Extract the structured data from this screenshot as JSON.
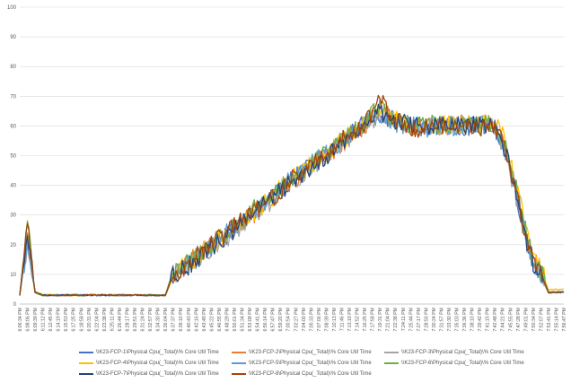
{
  "chart_data": {
    "type": "line",
    "title": "",
    "xlabel": "",
    "ylabel": "",
    "ylim": [
      0,
      100
    ],
    "yticks": [
      0,
      10,
      20,
      30,
      40,
      50,
      60,
      70,
      80,
      90,
      100
    ],
    "grid": "horizontal",
    "legend_position": "bottom",
    "x_categories": [
      "6:06:34 PM",
      "6:08:06 PM",
      "6:09:39 PM",
      "6:11:12 PM",
      "6:12:45 PM",
      "6:14:19 PM",
      "6:15:53 PM",
      "6:17:25 PM",
      "6:18:58 PM",
      "6:20:31 PM",
      "6:22:04 PM",
      "6:23:38 PM",
      "6:25:11 PM",
      "6:26:44 PM",
      "6:28:17 PM",
      "6:29:51 PM",
      "6:31:24 PM",
      "6:32:57 PM",
      "6:34:30 PM",
      "6:36:04 PM",
      "6:37:37 PM",
      "6:39:10 PM",
      "6:40:43 PM",
      "6:42:16 PM",
      "6:43:49 PM",
      "6:45:22 PM",
      "6:46:55 PM",
      "6:48:29 PM",
      "6:50:01 PM",
      "6:51:34 PM",
      "6:53:08 PM",
      "6:54:41 PM",
      "6:56:14 PM",
      "6:57:47 PM",
      "6:59:20 PM",
      "7:00:54 PM",
      "7:02:27 PM",
      "7:04:00 PM",
      "7:05:33 PM",
      "7:07:06 PM",
      "7:08:39 PM",
      "7:10:13 PM",
      "7:11:46 PM",
      "7:13:19 PM",
      "7:14:52 PM",
      "7:16:25 PM",
      "7:17:58 PM",
      "7:19:31 PM",
      "7:21:04 PM",
      "7:22:38 PM",
      "7:24:11 PM",
      "7:25:44 PM",
      "7:27:17 PM",
      "7:28:50 PM",
      "7:30:24 PM",
      "7:31:57 PM",
      "7:33:30 PM",
      "7:35:03 PM",
      "7:36:36 PM",
      "7:38:10 PM",
      "7:39:42 PM",
      "7:41:15 PM",
      "7:42:48 PM",
      "7:44:21 PM",
      "7:45:55 PM",
      "7:47:28 PM",
      "7:49:01 PM",
      "7:50:34 PM",
      "7:52:07 PM",
      "7:53:41 PM",
      "7:55:14 PM",
      "7:56:47 PM"
    ],
    "series": [
      {
        "name": "\\\\K23-FCP-1\\Physical Cpu(_Total)\\% Core Util Time",
        "color": "#4472C4",
        "values": [
          3,
          22,
          4,
          3,
          3,
          3,
          3,
          3,
          3,
          3,
          3,
          3,
          3,
          3,
          3,
          3,
          3,
          3,
          3,
          3,
          10,
          11,
          13,
          15,
          17,
          19,
          21,
          23,
          25,
          27,
          30,
          32,
          34,
          36,
          38,
          41,
          43,
          45,
          47,
          49,
          51,
          53,
          55,
          57,
          59,
          61,
          63,
          64,
          63,
          62,
          61,
          60,
          60,
          60,
          60,
          60,
          60,
          60,
          60,
          60,
          60,
          60,
          59,
          55,
          45,
          35,
          23,
          14,
          10,
          4,
          4,
          4
        ]
      },
      {
        "name": "\\\\K23-FCP-2\\Physical Cpu(_Total)\\% Core Util Time",
        "color": "#ED7D31",
        "values": [
          3,
          24,
          4,
          3,
          3,
          3,
          3,
          3,
          3,
          3,
          3,
          3,
          3,
          3,
          3,
          3,
          3,
          3,
          3,
          3,
          9,
          12,
          14,
          16,
          18,
          20,
          22,
          24,
          26,
          28,
          29,
          31,
          33,
          35,
          37,
          40,
          42,
          44,
          46,
          48,
          50,
          52,
          54,
          56,
          58,
          60,
          63,
          66,
          64,
          62,
          61,
          60,
          59,
          60,
          61,
          60,
          59,
          60,
          61,
          60,
          59,
          61,
          60,
          56,
          47,
          37,
          25,
          15,
          11,
          4,
          4,
          4
        ]
      },
      {
        "name": "\\\\K23-FCP-3\\Physical Cpu(_Total)\\% Core Util Time",
        "color": "#A5A5A5",
        "values": [
          3,
          20,
          4,
          3,
          3,
          3,
          3,
          3,
          3,
          3,
          3,
          3,
          3,
          3,
          3,
          3,
          3,
          3,
          3,
          3,
          10,
          11,
          13,
          14,
          16,
          19,
          21,
          22,
          24,
          26,
          29,
          31,
          33,
          35,
          38,
          40,
          42,
          44,
          46,
          48,
          50,
          52,
          54,
          56,
          58,
          60,
          62,
          63,
          62,
          61,
          60,
          59,
          60,
          60,
          60,
          59,
          60,
          60,
          60,
          60,
          60,
          60,
          59,
          54,
          44,
          34,
          22,
          13,
          9,
          4,
          4,
          4
        ]
      },
      {
        "name": "\\\\K23-FCP-4\\Physical Cpu(_Total)\\% Core Util Time",
        "color": "#FFC000",
        "values": [
          3,
          23,
          4,
          3,
          3,
          3,
          3,
          3,
          3,
          3,
          3,
          3,
          3,
          3,
          3,
          3,
          3,
          3,
          3,
          3,
          9,
          12,
          13,
          16,
          18,
          20,
          22,
          23,
          25,
          27,
          30,
          32,
          34,
          36,
          39,
          41,
          43,
          45,
          47,
          49,
          51,
          53,
          55,
          57,
          59,
          61,
          63,
          65,
          63,
          62,
          61,
          61,
          60,
          61,
          60,
          60,
          61,
          60,
          60,
          61,
          60,
          62,
          61,
          57,
          48,
          38,
          26,
          16,
          12,
          5,
          5,
          5
        ]
      },
      {
        "name": "\\\\K23-FCP-5\\Physical Cpu(_Total)\\% Core Util Time",
        "color": "#5B9BD5",
        "values": [
          3,
          21,
          4,
          3,
          3,
          3,
          3,
          3,
          3,
          3,
          3,
          3,
          3,
          3,
          3,
          3,
          3,
          3,
          3,
          3,
          10,
          11,
          14,
          15,
          17,
          19,
          21,
          24,
          26,
          28,
          30,
          32,
          34,
          36,
          38,
          41,
          43,
          45,
          47,
          49,
          51,
          53,
          55,
          57,
          59,
          61,
          62,
          64,
          63,
          61,
          60,
          60,
          60,
          59,
          60,
          61,
          60,
          59,
          60,
          60,
          61,
          60,
          59,
          55,
          46,
          36,
          24,
          14,
          10,
          4,
          4,
          4
        ]
      },
      {
        "name": "\\\\K23-FCP-6\\Physical Cpu(_Total)\\% Core Util Time",
        "color": "#70AD47",
        "values": [
          3,
          28,
          4,
          3,
          3,
          3,
          3,
          3,
          3,
          3,
          3,
          3,
          3,
          3,
          3,
          3,
          3,
          3,
          3,
          3,
          11,
          12,
          14,
          16,
          18,
          20,
          22,
          24,
          26,
          28,
          31,
          33,
          35,
          37,
          39,
          41,
          43,
          45,
          47,
          49,
          51,
          53,
          55,
          57,
          59,
          61,
          64,
          67,
          64,
          62,
          61,
          60,
          60,
          60,
          61,
          60,
          60,
          61,
          60,
          60,
          60,
          61,
          60,
          56,
          47,
          37,
          25,
          15,
          11,
          4,
          4,
          4
        ]
      },
      {
        "name": "\\\\K23-FCP-7\\Physical Cpu(_Total)\\% Core Util Time",
        "color": "#264478",
        "values": [
          3,
          23,
          4,
          3,
          3,
          3,
          3,
          3,
          3,
          3,
          3,
          3,
          3,
          3,
          3,
          3,
          3,
          3,
          3,
          3,
          10,
          11,
          13,
          15,
          17,
          19,
          21,
          23,
          25,
          27,
          30,
          32,
          34,
          36,
          38,
          40,
          42,
          44,
          46,
          48,
          50,
          52,
          54,
          56,
          58,
          60,
          63,
          65,
          63,
          62,
          61,
          60,
          60,
          60,
          60,
          60,
          60,
          60,
          60,
          60,
          60,
          60,
          59,
          55,
          45,
          35,
          23,
          14,
          10,
          4,
          4,
          4
        ]
      },
      {
        "name": "\\\\K23-FCP-8\\Physical Cpu(_Total)\\% Core Util Time",
        "color": "#9E480E",
        "values": [
          3,
          27,
          4,
          3,
          3,
          3,
          3,
          3,
          3,
          3,
          3,
          3,
          3,
          3,
          3,
          3,
          3,
          3,
          3,
          3,
          10,
          12,
          14,
          16,
          18,
          20,
          22,
          24,
          26,
          28,
          30,
          32,
          34,
          36,
          38,
          41,
          43,
          45,
          47,
          49,
          51,
          53,
          55,
          57,
          59,
          61,
          65,
          70,
          64,
          62,
          61,
          60,
          59,
          60,
          60,
          60,
          59,
          60,
          60,
          60,
          59,
          60,
          59,
          55,
          46,
          36,
          24,
          14,
          10,
          4,
          4,
          4
        ]
      }
    ]
  }
}
